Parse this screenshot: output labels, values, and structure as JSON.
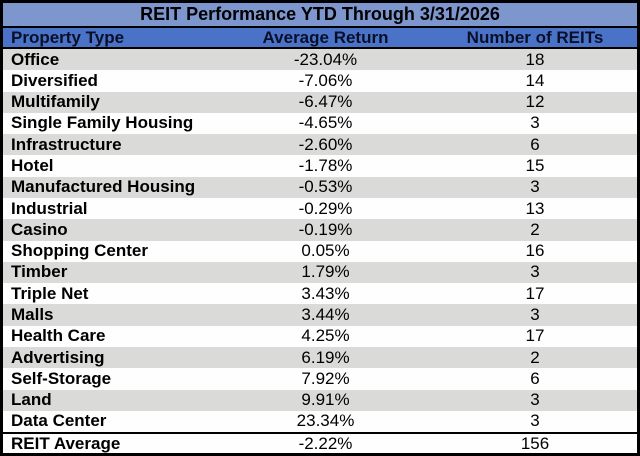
{
  "chart_data": {
    "type": "table",
    "title": "REIT Performance YTD Through 3/31/2026",
    "columns": [
      "Property Type",
      "Average Return",
      "Number of REITs"
    ],
    "rows": [
      [
        "Office",
        "-23.04%",
        "18"
      ],
      [
        "Diversified",
        "-7.06%",
        "14"
      ],
      [
        "Multifamily",
        "-6.47%",
        "12"
      ],
      [
        "Single Family Housing",
        "-4.65%",
        "3"
      ],
      [
        "Infrastructure",
        "-2.60%",
        "6"
      ],
      [
        "Hotel",
        "-1.78%",
        "15"
      ],
      [
        "Manufactured Housing",
        "-0.53%",
        "3"
      ],
      [
        "Industrial",
        "-0.29%",
        "13"
      ],
      [
        "Casino",
        "-0.19%",
        "2"
      ],
      [
        "Shopping Center",
        "0.05%",
        "16"
      ],
      [
        "Timber",
        "1.79%",
        "3"
      ],
      [
        "Triple Net",
        "3.43%",
        "17"
      ],
      [
        "Malls",
        "3.44%",
        "3"
      ],
      [
        "Health Care",
        "4.25%",
        "17"
      ],
      [
        "Advertising",
        "6.19%",
        "2"
      ],
      [
        "Self-Storage",
        "7.92%",
        "6"
      ],
      [
        "Land",
        "9.91%",
        "3"
      ],
      [
        "Data Center",
        "23.34%",
        "3"
      ]
    ],
    "footer": [
      "REIT Average",
      "-2.22%",
      "156"
    ],
    "layout": {
      "striped": true,
      "first_data_row_shaded": true,
      "value_columns_centered": true
    }
  },
  "colors": {
    "title_bg": "#7E96CE",
    "header_bg": "#4A73C8",
    "row_alt_bg": "#DADAD8",
    "row_bg": "#FEFEFE",
    "border": "#000000",
    "title_text": "#000000",
    "header_text": "#0A0F28",
    "body_text": "#000000"
  }
}
